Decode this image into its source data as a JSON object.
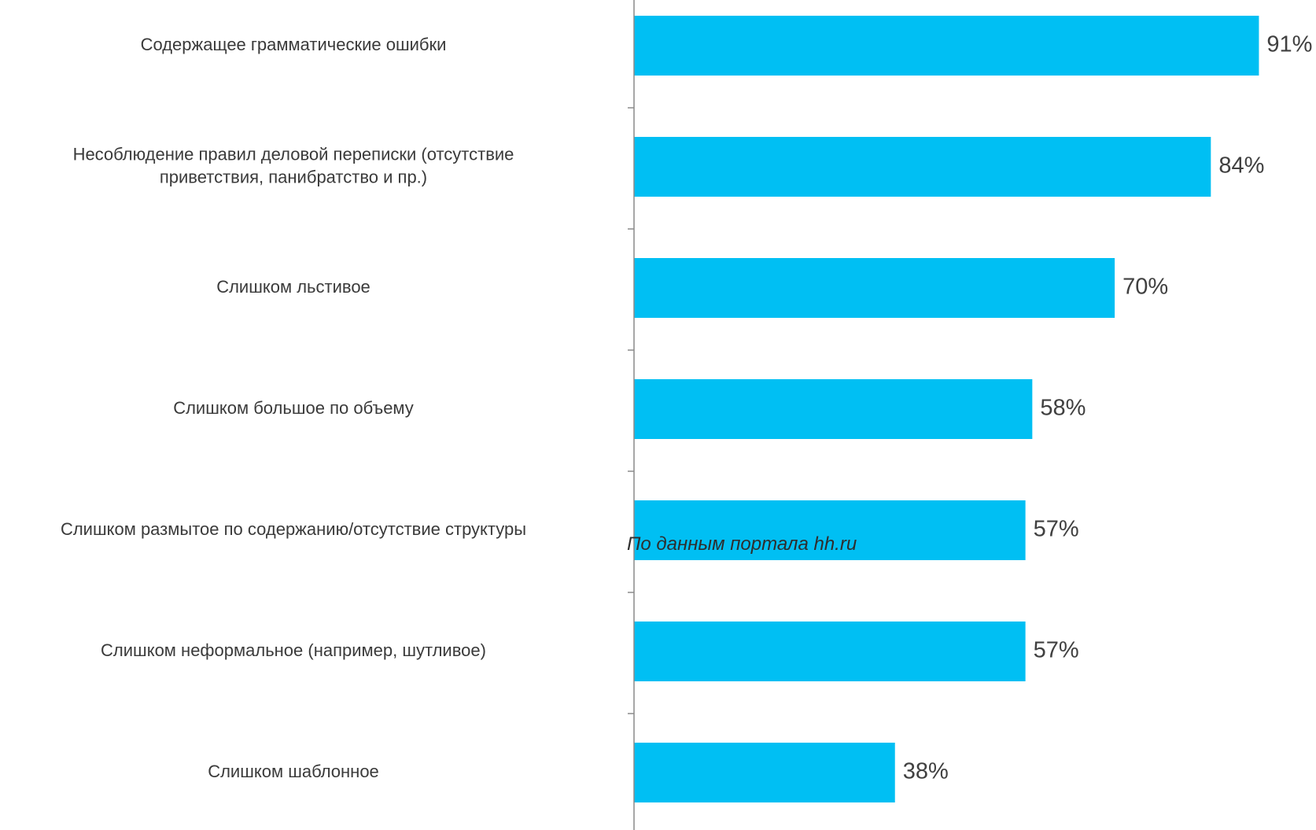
{
  "chart_data": {
    "type": "bar",
    "orientation": "horizontal",
    "categories": [
      "Содержащее грамматические ошибки",
      "Несоблюдение правил деловой переписки (отсутствие приветствия, панибратство и пр.)",
      "Слишком льстивое",
      "Слишком большое по объему",
      "Слишком размытое по содержанию/отсутствие структуры",
      "Слишком неформальное (например, шутливое)",
      "Слишком шаблонное"
    ],
    "category_lines": [
      [
        "Содержащее грамматические ошибки"
      ],
      [
        "Несоблюдение правил деловой переписки (отсутствие",
        "приветствия, панибратство и пр.)"
      ],
      [
        "Слишком льстивое"
      ],
      [
        "Слишком большое по объему"
      ],
      [
        "Слишком размытое по содержанию/отсутствие структуры"
      ],
      [
        "Слишком неформальное (например, шутливое)"
      ],
      [
        "Слишком шаблонное"
      ]
    ],
    "values": [
      91,
      84,
      70,
      58,
      57,
      57,
      38
    ],
    "value_labels": [
      "91%",
      "84%",
      "70%",
      "58%",
      "57%",
      "57%",
      "38%"
    ],
    "xlim": [
      0,
      100
    ],
    "bar_color": "#00bff3",
    "grid": false,
    "legend": false
  },
  "annotation": "По данным портала hh.ru"
}
